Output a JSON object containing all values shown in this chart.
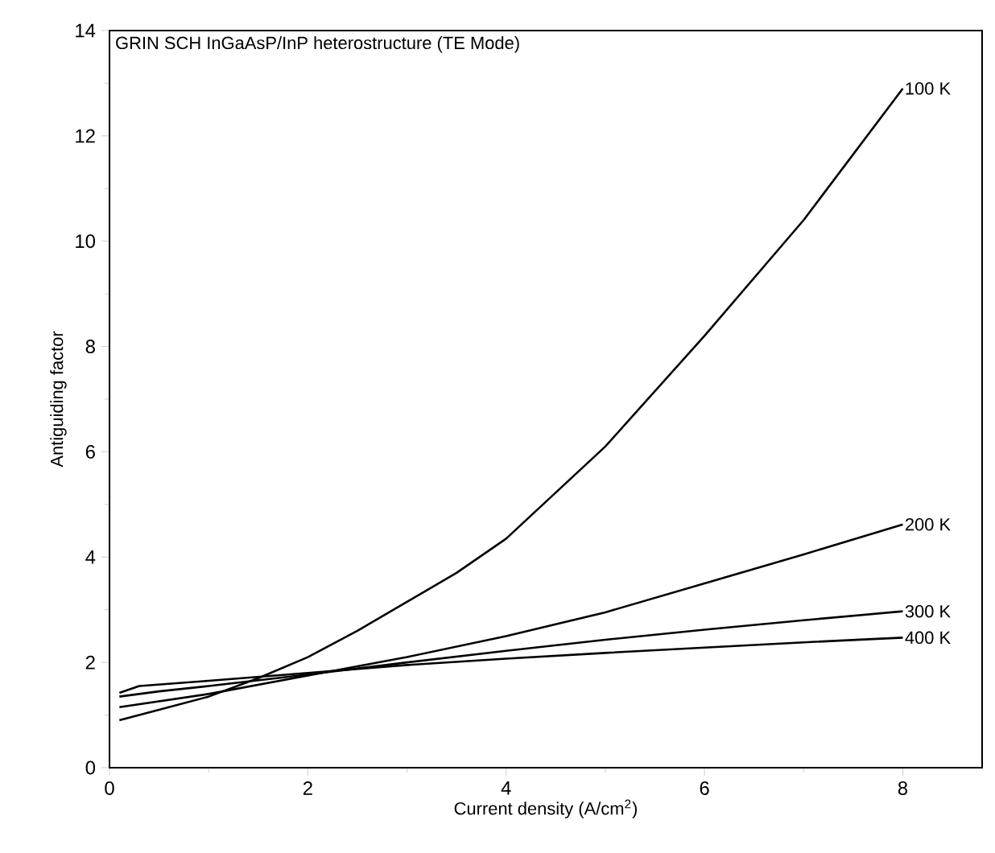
{
  "chart_data": {
    "type": "line",
    "title": "GRIN SCH InGaAsP/InP heterostructure (TE Mode)",
    "xlabel": "Current density (A/cm$^{2}$)",
    "ylabel": "Antiguiding factor",
    "xlim": [
      0,
      8.8
    ],
    "ylim": [
      0,
      14
    ],
    "xticks": [
      0,
      2,
      4,
      6,
      8
    ],
    "yticks": [
      0,
      2,
      4,
      6,
      8,
      10,
      12,
      14
    ],
    "grid": false,
    "legend": false,
    "marker": "none",
    "line_style": "solid",
    "series": [
      {
        "name": "100 K",
        "color": "#000000",
        "x": [
          0.1,
          0.5,
          1,
          1.5,
          2,
          2.5,
          3,
          3.5,
          4,
          5,
          6,
          7,
          8
        ],
        "values": [
          0.9,
          1.1,
          1.35,
          1.7,
          2.1,
          2.6,
          3.15,
          3.7,
          4.35,
          6.1,
          8.2,
          10.4,
          12.9
        ]
      },
      {
        "name": "200 K",
        "color": "#000000",
        "x": [
          0.1,
          1,
          2,
          3,
          4,
          5,
          6,
          7,
          8
        ],
        "values": [
          1.15,
          1.4,
          1.75,
          2.1,
          2.5,
          2.95,
          3.5,
          4.05,
          4.62
        ]
      },
      {
        "name": "300 K",
        "color": "#000000",
        "x": [
          0.1,
          0.5,
          1,
          2,
          3,
          4,
          5,
          6,
          7,
          8
        ],
        "values": [
          1.35,
          1.45,
          1.55,
          1.77,
          2.0,
          2.22,
          2.43,
          2.62,
          2.8,
          2.97
        ]
      },
      {
        "name": "400 K",
        "color": "#000000",
        "x": [
          0.1,
          0.3,
          1,
          2,
          3,
          4,
          5,
          6,
          7,
          8
        ],
        "values": [
          1.42,
          1.55,
          1.65,
          1.8,
          1.95,
          2.07,
          2.18,
          2.28,
          2.38,
          2.47
        ]
      }
    ]
  }
}
